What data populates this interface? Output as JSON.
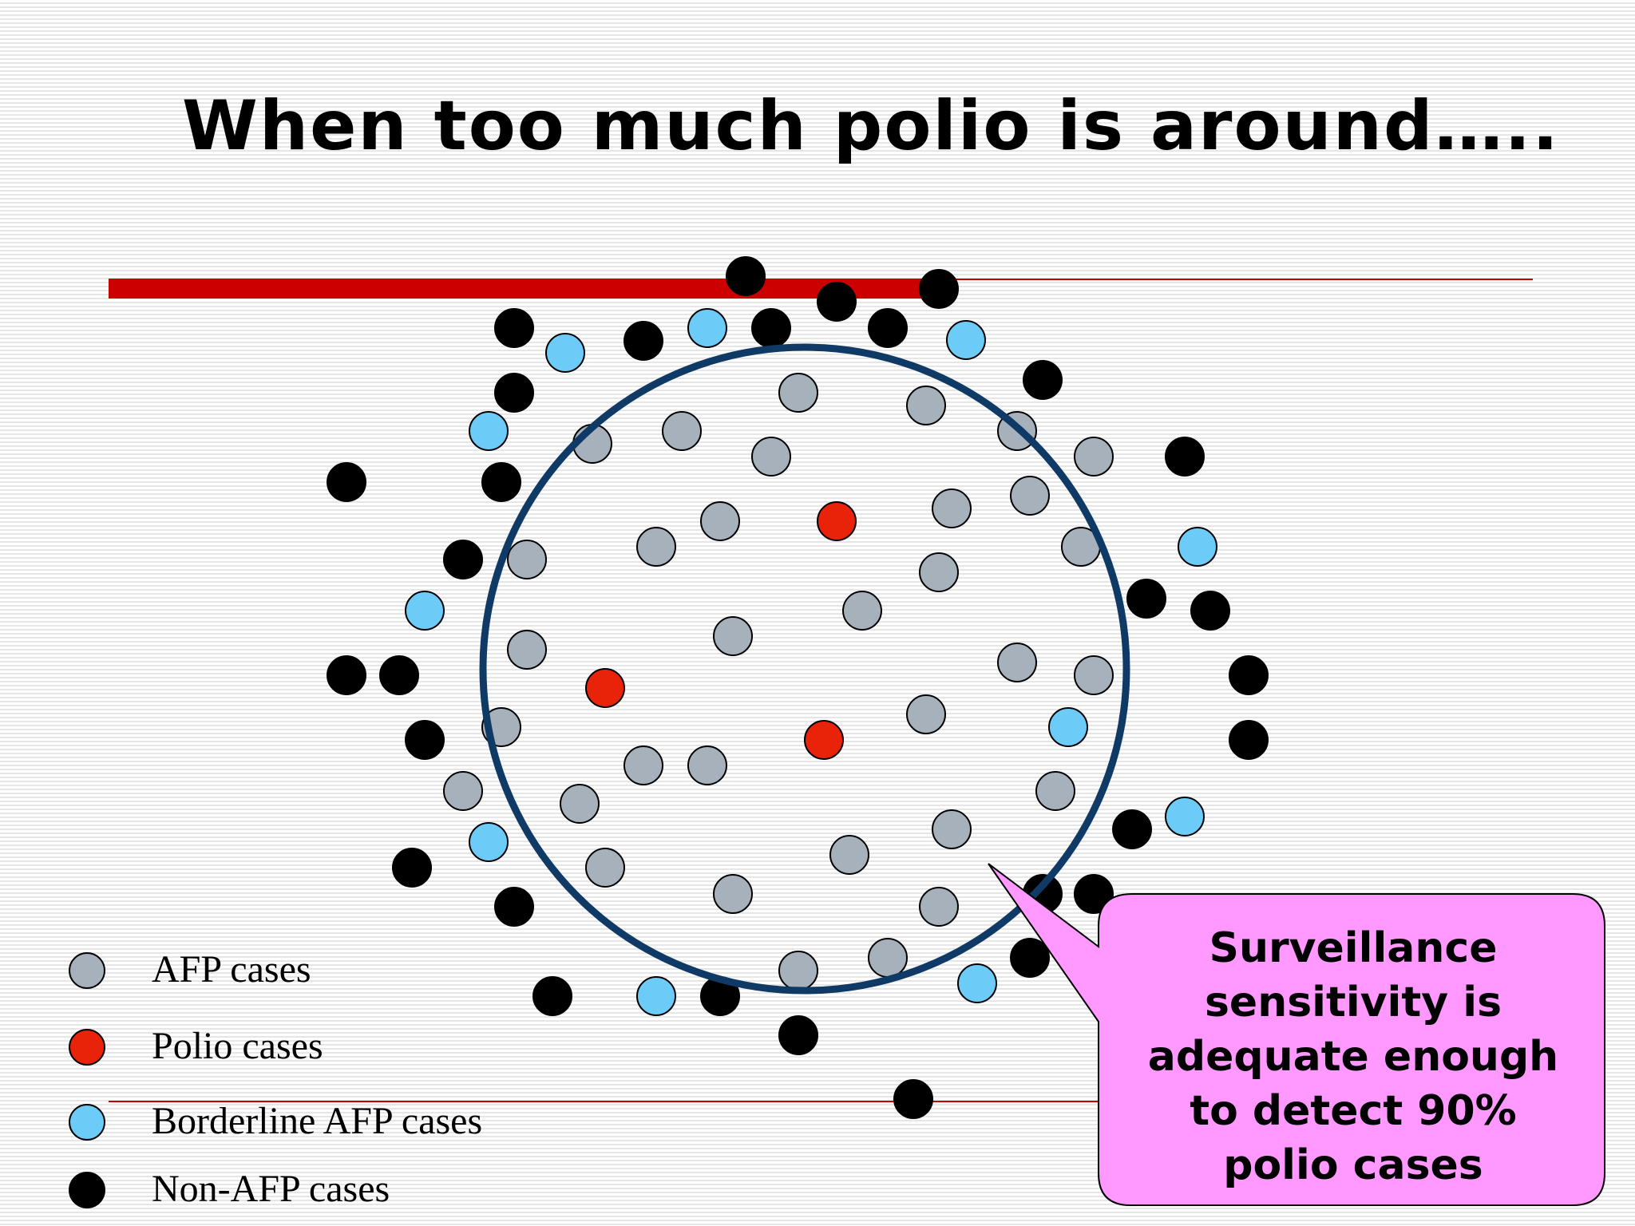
{
  "title": "When too much polio is around…..",
  "colors": {
    "accent_bar": "#cc0000",
    "afp": "#a7b1bb",
    "polio": "#e8230a",
    "borderline": "#6ccbf7",
    "non_afp": "#000000",
    "surveillance_circle": "#0f3a66",
    "callout_fill": "#ff99ff"
  },
  "legend": [
    {
      "type": "afp",
      "label": "AFP cases"
    },
    {
      "type": "polio",
      "label": "Polio cases"
    },
    {
      "type": "borderline",
      "label": "Borderline AFP cases"
    },
    {
      "type": "non_afp",
      "label": "Non-AFP cases"
    }
  ],
  "callout": {
    "lines": [
      "Surveillance",
      "sensitivity is",
      "adequate enough",
      "to detect 90%",
      "polio cases"
    ]
  }
}
